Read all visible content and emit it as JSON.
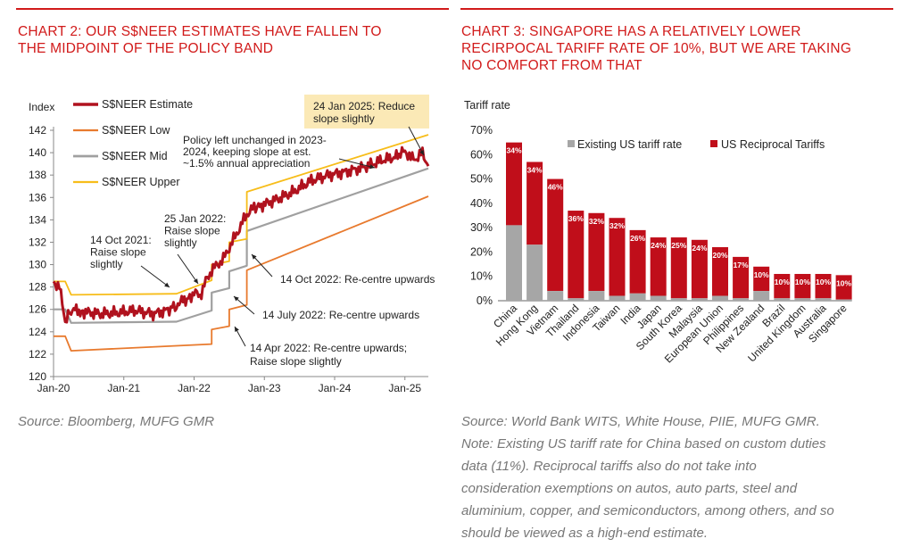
{
  "colors": {
    "accent": "#d11a1a",
    "estimate": "#b0121e",
    "low": "#e87a2e",
    "mid": "#a0a0a0",
    "upper": "#f7bd1a",
    "bar_red": "#c00e1a",
    "bar_grey": "#a6a6a6",
    "callout_bg": "#fbe9b6"
  },
  "left": {
    "title_line1": "CHART 2: OUR S$NEER ESTIMATES HAVE FALLEN TO",
    "title_line2": "THE MIDPOINT OF THE POLICY BAND",
    "source": "Source: Bloomberg, MUFG GMR"
  },
  "right": {
    "title_line1": "CHART 3: SINGAPORE HAS A RELATIVELY LOWER",
    "title_line2": "RECIRPOCAL TARIFF RATE OF 10%, BUT WE ARE TAKING",
    "title_line3": "NO COMFORT FROM THAT",
    "note_lines": [
      "Source: World Bank WITS, White House, PIIE, MUFG GMR.",
      "Note: Existing US tariff rate for China based on custom duties",
      "data (11%). Reciprocal tariffs also do not take into",
      "consideration exemptions on autos, auto parts, steel and",
      "aluminium, copper, and semiconductors, among others, and so",
      "should be viewed as a high-end estimate."
    ]
  },
  "chart_data": [
    {
      "type": "line",
      "ylabel": "Index",
      "ylim": [
        120,
        142
      ],
      "yticks": [
        120,
        122,
        124,
        126,
        128,
        130,
        132,
        134,
        136,
        138,
        140,
        142
      ],
      "xlim": [
        "2020-01",
        "2025-05"
      ],
      "xticks": [
        "Jan-20",
        "Jan-21",
        "Jan-22",
        "Jan-23",
        "Jan-24",
        "Jan-25"
      ],
      "legend": [
        "S$NEER Estimate",
        "S$NEER Low",
        "S$NEER Mid",
        "S$NEER Upper"
      ],
      "legend_position": "top-left",
      "grid": false,
      "series": [
        {
          "name": "S$NEER Estimate",
          "x": [
            "2020-01",
            "2020-02",
            "2020-03",
            "2020-04",
            "2020-06",
            "2020-09",
            "2020-12",
            "2021-03",
            "2021-06",
            "2021-09",
            "2021-10",
            "2021-12",
            "2022-01",
            "2022-02",
            "2022-03",
            "2022-04",
            "2022-05",
            "2022-06",
            "2022-07",
            "2022-08",
            "2022-09",
            "2022-10",
            "2022-11",
            "2022-12",
            "2023-03",
            "2023-06",
            "2023-09",
            "2023-12",
            "2024-03",
            "2024-06",
            "2024-09",
            "2024-12",
            "2025-01",
            "2025-02",
            "2025-03",
            "2025-04",
            "2025-05"
          ],
          "y": [
            128.5,
            128.0,
            125.0,
            126.0,
            125.8,
            125.6,
            125.7,
            125.9,
            125.6,
            126.0,
            126.5,
            127.0,
            127.5,
            127.2,
            128.5,
            129.5,
            130.0,
            130.5,
            131.5,
            132.5,
            133.5,
            134.5,
            135.0,
            135.2,
            135.8,
            136.5,
            137.5,
            138.0,
            138.3,
            138.7,
            139.3,
            139.7,
            140.2,
            139.5,
            139.5,
            140.0,
            138.8
          ]
        },
        {
          "name": "S$NEER Low",
          "x": [
            "2020-01",
            "2020-03",
            "2020-04",
            "2022-04",
            "2022-04",
            "2022-07",
            "2022-07",
            "2022-10",
            "2022-10",
            "2025-05"
          ],
          "y": [
            123.6,
            123.6,
            122.3,
            122.9,
            124.2,
            124.5,
            126.0,
            126.4,
            129.5,
            136.1
          ]
        },
        {
          "name": "S$NEER Mid",
          "x": [
            "2020-01",
            "2020-03",
            "2020-04",
            "2021-10",
            "2022-04",
            "2022-04",
            "2022-07",
            "2022-07",
            "2022-10",
            "2022-10",
            "2025-05"
          ],
          "y": [
            126.0,
            126.0,
            124.8,
            124.9,
            125.9,
            127.5,
            127.9,
            129.4,
            129.9,
            133.0,
            138.6
          ]
        },
        {
          "name": "S$NEER Upper",
          "x": [
            "2020-01",
            "2020-03",
            "2020-04",
            "2021-10",
            "2022-04",
            "2022-04",
            "2022-07",
            "2022-07",
            "2022-10",
            "2022-10",
            "2025-05"
          ],
          "y": [
            128.5,
            128.5,
            127.3,
            127.4,
            128.6,
            130.0,
            130.3,
            132.0,
            132.3,
            136.5,
            141.6
          ]
        }
      ],
      "annotations": [
        "Policy left unchanged in 2023-\n2024, keeping slope at est.\n~1.5% annual appreciation",
        "24 Jan 2025: Reduce\nslope slightly",
        "25 Jan 2022:\nRaise slope\nslightly",
        "14 Oct 2021:\nRaise slope\nslightly",
        "14 Oct 2022: Re-centre upwards",
        "14 July 2022: Re-centre upwards",
        "14 Apr 2022: Re-centre upwards;\nRaise slope slightly"
      ]
    },
    {
      "type": "bar",
      "ylabel": "Tariff rate",
      "ylim": [
        0,
        70
      ],
      "yticks": [
        "0%",
        "10%",
        "20%",
        "30%",
        "40%",
        "50%",
        "60%",
        "70%"
      ],
      "legend": [
        "Existing US tariff rate",
        "US Reciprocal Tariffs"
      ],
      "legend_position": "top-right",
      "categories": [
        "China",
        "Hong Kong",
        "Vietnam",
        "Thailand",
        "Indonesia",
        "Taiwan",
        "India",
        "Japan",
        "South Korea",
        "Malaysia",
        "European Union",
        "Philippines",
        "New Zealand",
        "Brazil",
        "United Kingdom",
        "Australia",
        "Singapore"
      ],
      "series": [
        {
          "name": "Existing US tariff rate",
          "values": [
            31,
            23,
            4,
            1,
            4,
            2,
            3,
            2,
            1,
            1,
            2,
            1,
            4,
            1,
            1,
            1,
            0.5
          ]
        },
        {
          "name": "US Reciprocal Tariffs",
          "values": [
            34,
            34,
            46,
            36,
            32,
            32,
            26,
            24,
            25,
            24,
            20,
            17,
            10,
            10,
            10,
            10,
            10
          ]
        }
      ],
      "data_labels": [
        "34%",
        "34%",
        "46%",
        "36%",
        "32%",
        "32%",
        "26%",
        "24%",
        "25%",
        "24%",
        "20%",
        "17%",
        "10%",
        "10%",
        "10%",
        "10%",
        "10%"
      ]
    }
  ]
}
